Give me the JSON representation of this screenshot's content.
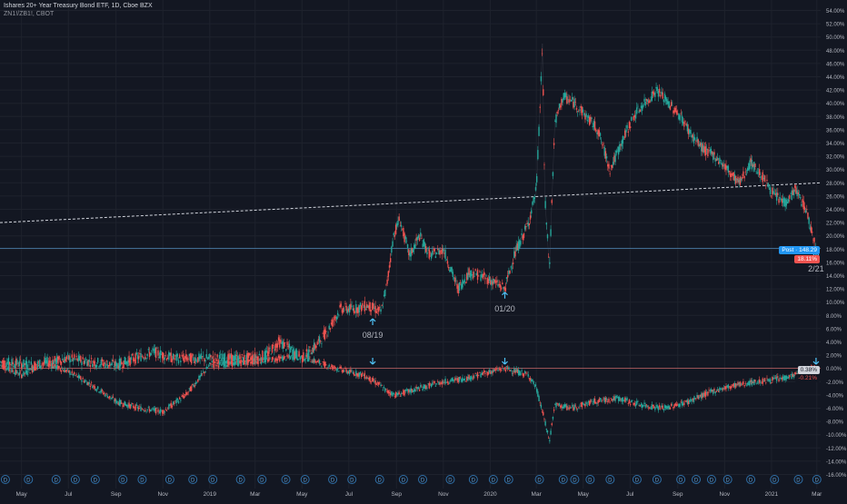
{
  "header": {
    "title": "Ishares 20+ Year Treasury Bond ETF, 1D, Cboe BZX",
    "subtitle": "ZN1!/ZB1!, CBOT"
  },
  "colors": {
    "background": "#131722",
    "up": "#26a69a",
    "down": "#ef5350",
    "arrow": "#4fc3f7",
    "axis_text": "#b2b5be",
    "grid": "#1e222d",
    "trendline": "#d1d4dc",
    "price_line": "#5d9fd4",
    "zero_line": "#e57373",
    "post_tag": "#2196f3",
    "neg_tag": "#ef5350",
    "events_icon": "#2e6ea6"
  },
  "chart_data": {
    "type": "line",
    "y_scale": "percent",
    "ylim": [
      -16,
      56
    ],
    "yticks": [
      "54.00%",
      "52.00%",
      "50.00%",
      "48.00%",
      "46.00%",
      "44.00%",
      "42.00%",
      "40.00%",
      "38.00%",
      "36.00%",
      "34.00%",
      "32.00%",
      "30.00%",
      "28.00%",
      "26.00%",
      "24.00%",
      "22.00%",
      "20.00%",
      "18.00%",
      "16.00%",
      "14.00%",
      "12.00%",
      "10.00%",
      "8.00%",
      "6.00%",
      "4.00%",
      "2.00%",
      "0.00%",
      "-2.00%",
      "-4.00%",
      "-6.00%",
      "-8.00%",
      "-10.00%",
      "-12.00%",
      "-14.00%",
      "-16.00%"
    ],
    "ytick_values": [
      54,
      52,
      50,
      48,
      46,
      44,
      42,
      40,
      38,
      36,
      34,
      32,
      30,
      28,
      26,
      24,
      22,
      20,
      18,
      16,
      14,
      12,
      10,
      8,
      6,
      4,
      2,
      0,
      -2,
      -4,
      -6,
      -8,
      -10,
      -12,
      -14,
      -16
    ],
    "xticks": [
      "May",
      "Jul",
      "Sep",
      "Nov",
      "2019",
      "Mar",
      "May",
      "Jul",
      "Sep",
      "Nov",
      "2020",
      "Mar",
      "May",
      "Jul",
      "Sep",
      "Nov",
      "2021",
      "Mar"
    ],
    "xtick_dates": [
      "2018-05-01",
      "2018-07-01",
      "2018-09-01",
      "2018-11-01",
      "2019-01-01",
      "2019-03-01",
      "2019-05-01",
      "2019-07-01",
      "2019-09-01",
      "2019-11-01",
      "2020-01-01",
      "2020-03-01",
      "2020-05-01",
      "2020-07-01",
      "2020-09-01",
      "2020-11-01",
      "2021-01-01",
      "2021-03-01"
    ],
    "xlim": [
      "2018-04-03",
      "2021-03-06"
    ],
    "series": [
      {
        "role": "price_change",
        "style": "candles",
        "points": [
          [
            "2018-04-03",
            1
          ],
          [
            "2018-05-15",
            0.5
          ],
          [
            "2018-07-01",
            1.5
          ],
          [
            "2018-09-01",
            0.5
          ],
          [
            "2018-10-20",
            2.5
          ],
          [
            "2018-11-15",
            1.5
          ],
          [
            "2019-01-01",
            1.5
          ],
          [
            "2019-02-15",
            1.5
          ],
          [
            "2019-03-15",
            2
          ],
          [
            "2019-04-01",
            4
          ],
          [
            "2019-04-15",
            3
          ],
          [
            "2019-05-01",
            1.5
          ],
          [
            "2019-05-20",
            3.5
          ],
          [
            "2019-06-05",
            6
          ],
          [
            "2019-06-20",
            9
          ],
          [
            "2019-07-10",
            9
          ],
          [
            "2019-07-25",
            9.5
          ],
          [
            "2019-08-12",
            8.5
          ],
          [
            "2019-08-20",
            13
          ],
          [
            "2019-08-28",
            20
          ],
          [
            "2019-09-05",
            22.5
          ],
          [
            "2019-09-18",
            17
          ],
          [
            "2019-10-01",
            20
          ],
          [
            "2019-10-15",
            17
          ],
          [
            "2019-11-01",
            18
          ],
          [
            "2019-11-20",
            12
          ],
          [
            "2019-12-05",
            14.5
          ],
          [
            "2019-12-20",
            14
          ],
          [
            "2020-01-06",
            13
          ],
          [
            "2020-01-20",
            12
          ],
          [
            "2020-02-01",
            17
          ],
          [
            "2020-02-20",
            22
          ],
          [
            "2020-03-01",
            27
          ],
          [
            "2020-03-06",
            40
          ],
          [
            "2020-03-09",
            49
          ],
          [
            "2020-03-12",
            26
          ],
          [
            "2020-03-18",
            15
          ],
          [
            "2020-03-25",
            37
          ],
          [
            "2020-04-05",
            41
          ],
          [
            "2020-04-20",
            40
          ],
          [
            "2020-05-05",
            38
          ],
          [
            "2020-05-20",
            36
          ],
          [
            "2020-06-05",
            30
          ],
          [
            "2020-06-20",
            34
          ],
          [
            "2020-07-05",
            38
          ],
          [
            "2020-07-20",
            40
          ],
          [
            "2020-08-05",
            42
          ],
          [
            "2020-08-20",
            40
          ],
          [
            "2020-09-05",
            38
          ],
          [
            "2020-09-20",
            35
          ],
          [
            "2020-10-05",
            33
          ],
          [
            "2020-10-20",
            32
          ],
          [
            "2020-11-05",
            30
          ],
          [
            "2020-11-20",
            28
          ],
          [
            "2020-12-05",
            31
          ],
          [
            "2020-12-20",
            29
          ],
          [
            "2021-01-05",
            26
          ],
          [
            "2021-01-20",
            25
          ],
          [
            "2021-02-01",
            27
          ],
          [
            "2021-02-15",
            24
          ],
          [
            "2021-02-24",
            20
          ],
          [
            "2021-03-01",
            18
          ]
        ]
      },
      {
        "role": "ratio",
        "style": "candles",
        "points": [
          [
            "2018-04-03",
            0.5
          ],
          [
            "2018-05-01",
            -1
          ],
          [
            "2018-06-01",
            0.8
          ],
          [
            "2018-07-01",
            -0.5
          ],
          [
            "2018-08-01",
            -2.5
          ],
          [
            "2018-09-01",
            -5
          ],
          [
            "2018-10-01",
            -6
          ],
          [
            "2018-11-01",
            -6.5
          ],
          [
            "2018-12-01",
            -4
          ],
          [
            "2019-01-01",
            0.5
          ],
          [
            "2019-02-01",
            0.7
          ],
          [
            "2019-03-01",
            1
          ],
          [
            "2019-04-01",
            1.5
          ],
          [
            "2019-05-01",
            1.8
          ],
          [
            "2019-06-01",
            0.5
          ],
          [
            "2019-07-01",
            -0.5
          ],
          [
            "2019-07-20",
            -1
          ],
          [
            "2019-08-10",
            -2.5
          ],
          [
            "2019-08-20",
            -3.5
          ],
          [
            "2019-09-01",
            -4
          ],
          [
            "2019-10-01",
            -3
          ],
          [
            "2019-11-01",
            -2
          ],
          [
            "2019-12-01",
            -1.5
          ],
          [
            "2020-01-01",
            -0.5
          ],
          [
            "2020-01-20",
            0
          ],
          [
            "2020-02-20",
            -1
          ],
          [
            "2020-03-01",
            -3
          ],
          [
            "2020-03-10",
            -7
          ],
          [
            "2020-03-18",
            -11
          ],
          [
            "2020-03-25",
            -5.5
          ],
          [
            "2020-04-15",
            -6
          ],
          [
            "2020-05-15",
            -5
          ],
          [
            "2020-06-15",
            -4.5
          ],
          [
            "2020-07-15",
            -5.5
          ],
          [
            "2020-08-15",
            -6
          ],
          [
            "2020-09-15",
            -5
          ],
          [
            "2020-10-15",
            -3.5
          ],
          [
            "2020-11-15",
            -2.5
          ],
          [
            "2020-12-15",
            -2
          ],
          [
            "2021-01-15",
            -1.5
          ],
          [
            "2021-02-01",
            -1
          ],
          [
            "2021-02-15",
            -0.5
          ],
          [
            "2021-02-25",
            0.2
          ],
          [
            "2021-03-01",
            0.3
          ]
        ]
      }
    ],
    "trendline": {
      "from": [
        "2018-04-03",
        22
      ],
      "to": [
        "2021-03-06",
        28
      ]
    },
    "current_price_level": 18.1,
    "zero_level": 0,
    "price_tag": "Post · 148.29",
    "change_tag": "18.11%",
    "ratio_tags": [
      "0.38%",
      "-0.21%"
    ],
    "arrows_upper": [
      {
        "date": "2019-08-01",
        "value": 7.5,
        "label": "08/19"
      },
      {
        "date": "2020-01-20",
        "value": 11.5,
        "label": "01/20"
      },
      {
        "date": "2021-02-28",
        "value": 17.5,
        "label": "2/21"
      }
    ],
    "arrows_lower": [
      {
        "date": "2019-08-01",
        "value": 0.5
      },
      {
        "date": "2020-01-20",
        "value": 0.5
      },
      {
        "date": "2021-02-28",
        "value": 0.5
      }
    ],
    "event_dates": [
      "2018-04-10",
      "2018-05-10",
      "2018-06-15",
      "2018-07-10",
      "2018-08-05",
      "2018-09-10",
      "2018-10-05",
      "2018-11-10",
      "2018-12-10",
      "2019-01-05",
      "2019-02-10",
      "2019-03-10",
      "2019-04-10",
      "2019-05-05",
      "2019-06-10",
      "2019-07-05",
      "2019-08-10",
      "2019-09-10",
      "2019-10-05",
      "2019-11-10",
      "2019-12-10",
      "2020-01-05",
      "2020-01-25",
      "2020-03-05",
      "2020-04-05",
      "2020-04-20",
      "2020-05-10",
      "2020-06-05",
      "2020-07-10",
      "2020-08-05",
      "2020-09-05",
      "2020-09-25",
      "2020-10-15",
      "2020-11-05",
      "2020-12-05",
      "2021-01-05",
      "2021-02-05",
      "2021-03-01"
    ],
    "event_label": "D"
  }
}
